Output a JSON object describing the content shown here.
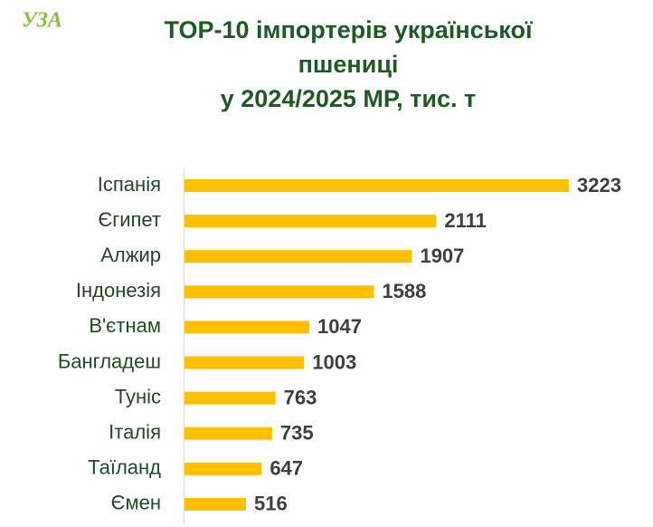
{
  "logo": "УЗА",
  "chart_data": {
    "type": "barh",
    "title": [
      "TOP-10 імпортерів української",
      "пшениці",
      "у 2024/2025 МР, тис. т"
    ],
    "categories": [
      "Іспанія",
      "Єгипет",
      "Алжир",
      "Індонезія",
      "В'єтнам",
      "Бангладеш",
      "Туніс",
      "Італія",
      "Таїланд",
      "Ємен"
    ],
    "values": [
      3223,
      2111,
      1907,
      1588,
      1047,
      1003,
      763,
      735,
      647,
      516
    ],
    "color": "#ffc000"
  }
}
